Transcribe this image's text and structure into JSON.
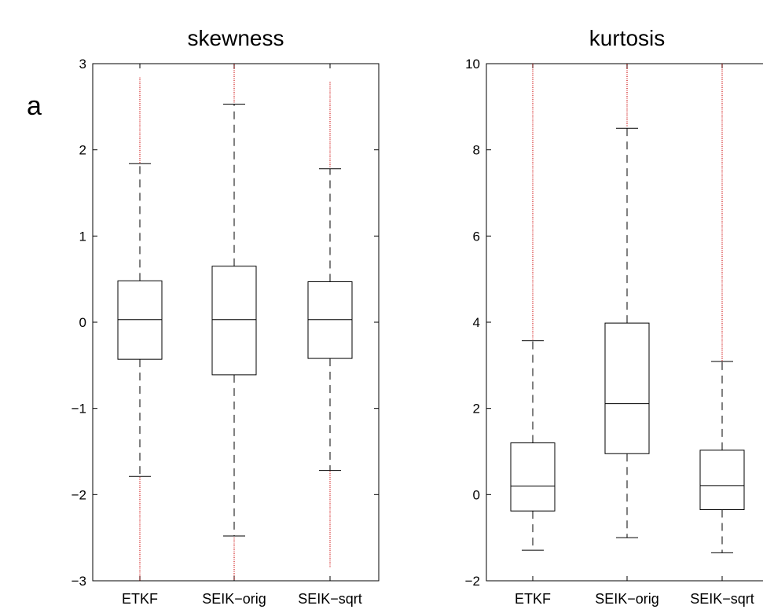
{
  "panel_label": "a",
  "chart_data": [
    {
      "type": "box",
      "title": "skewness",
      "xlabel": "",
      "ylabel": "",
      "ylim": [
        -3,
        3
      ],
      "yticks": [
        3,
        2,
        1,
        0,
        -1,
        -2,
        -3
      ],
      "ytick_labels": [
        "3",
        "2",
        "1",
        "0",
        "−1",
        "−2",
        "−3"
      ],
      "grid": false,
      "categories": [
        "ETKF",
        "SEIK−orig",
        "SEIK−sqrt"
      ],
      "boxes": [
        {
          "whisker_low": -1.79,
          "q1": -0.43,
          "median": 0.03,
          "q3": 0.48,
          "whisker_high": 1.84,
          "outliers_low": [
            -1.8,
            -3.0
          ],
          "outliers_high": [
            1.85,
            2.85
          ]
        },
        {
          "whisker_low": -2.48,
          "q1": -0.61,
          "median": 0.03,
          "q3": 0.65,
          "whisker_high": 2.53,
          "outliers_low": [
            -2.5,
            -3.0
          ],
          "outliers_high": [
            2.55,
            3.0
          ]
        },
        {
          "whisker_low": -1.72,
          "q1": -0.42,
          "median": 0.03,
          "q3": 0.47,
          "whisker_high": 1.78,
          "outliers_low": [
            -1.73,
            -2.85
          ],
          "outliers_high": [
            1.8,
            2.8
          ]
        }
      ],
      "colors": {
        "box": "#000000",
        "outlier": "#cc0000"
      }
    },
    {
      "type": "box",
      "title": "kurtosis",
      "xlabel": "",
      "ylabel": "",
      "ylim": [
        -2,
        10
      ],
      "yticks": [
        10,
        8,
        6,
        4,
        2,
        0,
        -2
      ],
      "ytick_labels": [
        "10",
        "8",
        "6",
        "4",
        "2",
        "0",
        "−2"
      ],
      "grid": false,
      "categories": [
        "ETKF",
        "SEIK−orig",
        "SEIK−sqrt"
      ],
      "boxes": [
        {
          "whisker_low": -1.29,
          "q1": -0.38,
          "median": 0.2,
          "q3": 1.2,
          "whisker_high": 3.57,
          "outliers_low": [],
          "outliers_high": [
            3.6,
            10.0
          ]
        },
        {
          "whisker_low": -1.0,
          "q1": 0.95,
          "median": 2.11,
          "q3": 3.98,
          "whisker_high": 8.5,
          "outliers_low": [],
          "outliers_high": [
            8.55,
            10.0
          ]
        },
        {
          "whisker_low": -1.35,
          "q1": -0.35,
          "median": 0.21,
          "q3": 1.03,
          "whisker_high": 3.09,
          "outliers_low": [],
          "outliers_high": [
            3.1,
            10.0
          ]
        }
      ],
      "colors": {
        "box": "#000000",
        "outlier": "#cc0000"
      }
    }
  ]
}
